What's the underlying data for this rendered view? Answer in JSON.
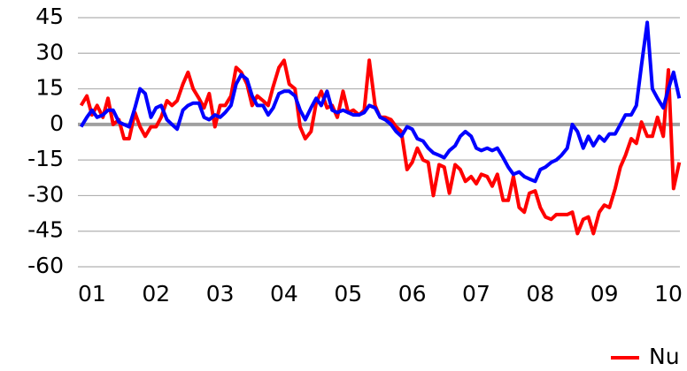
{
  "chart_data": {
    "type": "line",
    "x": [
      0.83,
      0.92,
      1.0,
      1.08,
      1.17,
      1.25,
      1.33,
      1.42,
      1.5,
      1.58,
      1.67,
      1.75,
      1.83,
      1.92,
      2.0,
      2.08,
      2.17,
      2.25,
      2.33,
      2.42,
      2.5,
      2.58,
      2.67,
      2.75,
      2.83,
      2.92,
      3.0,
      3.08,
      3.17,
      3.25,
      3.33,
      3.42,
      3.5,
      3.58,
      3.67,
      3.75,
      3.83,
      3.92,
      4.0,
      4.08,
      4.17,
      4.25,
      4.33,
      4.42,
      4.5,
      4.58,
      4.67,
      4.75,
      4.83,
      4.92,
      5.0,
      5.08,
      5.17,
      5.25,
      5.33,
      5.42,
      5.5,
      5.58,
      5.67,
      5.75,
      5.83,
      5.92,
      6.0,
      6.08,
      6.17,
      6.25,
      6.33,
      6.42,
      6.5,
      6.58,
      6.67,
      6.75,
      6.83,
      6.92,
      7.0,
      7.08,
      7.17,
      7.25,
      7.33,
      7.42,
      7.5,
      7.58,
      7.67,
      7.75,
      7.83,
      7.92,
      8.0,
      8.08,
      8.17,
      8.25,
      8.33,
      8.42,
      8.5,
      8.58,
      8.67,
      8.75,
      8.83,
      8.92,
      9.0,
      9.08,
      9.17,
      9.25,
      9.33,
      9.42,
      9.5,
      9.58,
      9.67,
      9.75,
      9.83,
      9.92,
      10.0,
      10.08,
      10.17
    ],
    "series": [
      {
        "name": "Nu",
        "color": "#ff0000",
        "values": [
          8,
          12,
          4,
          8,
          3,
          11,
          0,
          2,
          -6,
          -6,
          5,
          -1,
          -5,
          -1,
          -1,
          3,
          10,
          8,
          10,
          17,
          22,
          15,
          11,
          7,
          13,
          -1,
          8,
          8,
          12,
          24,
          22,
          17,
          8,
          12,
          10,
          8,
          16,
          24,
          27,
          17,
          15,
          -1,
          -6,
          -3,
          9,
          14,
          7,
          8,
          3,
          14,
          5,
          6,
          4,
          6,
          27,
          8,
          3,
          3,
          2,
          -1,
          -3,
          -19,
          -16,
          -10,
          -15,
          -16,
          -30,
          -17,
          -18,
          -29,
          -17,
          -19,
          -24,
          -22,
          -25,
          -21,
          -22,
          -26,
          -21,
          -32,
          -32,
          -22,
          -35,
          -37,
          -29,
          -28,
          -35,
          -39,
          -40,
          -38,
          -38,
          -38,
          -37,
          -46,
          -40,
          -39,
          -46,
          -37,
          -34,
          -35,
          -27,
          -18,
          -13,
          -6,
          -8,
          1,
          -5,
          -5,
          3,
          -5,
          23,
          -27,
          -16
        ]
      },
      {
        "color": "#0000ff",
        "values": [
          -1,
          3,
          6,
          3,
          4,
          6,
          6,
          1,
          0,
          -1,
          7,
          15,
          13,
          3,
          7,
          8,
          2,
          0,
          -2,
          6,
          8,
          9,
          9,
          3,
          2,
          4,
          3,
          5,
          8,
          17,
          21,
          19,
          12,
          8,
          8,
          4,
          7,
          13,
          14,
          14,
          12,
          6,
          2,
          7,
          11,
          8,
          14,
          6,
          5,
          6,
          5,
          4,
          4,
          5,
          8,
          7,
          3,
          2,
          0,
          -3,
          -5,
          -1,
          -2,
          -6,
          -7,
          -10,
          -12,
          -13,
          -14,
          -11,
          -9,
          -5,
          -3,
          -5,
          -10,
          -11,
          -10,
          -11,
          -10,
          -14,
          -18,
          -21,
          -20,
          -22,
          -23,
          -24,
          -19,
          -18,
          -16,
          -15,
          -13,
          -10,
          0,
          -3,
          -10,
          -5,
          -9,
          -5,
          -7,
          -4,
          -4,
          0,
          4,
          4,
          8,
          25,
          43,
          15,
          11,
          7,
          15,
          22,
          11
        ]
      }
    ],
    "xlim": [
      0.78,
      10.18
    ],
    "xticks": [
      {
        "value": 1,
        "label": "01"
      },
      {
        "value": 2,
        "label": "02"
      },
      {
        "value": 3,
        "label": "03"
      },
      {
        "value": 4,
        "label": "04"
      },
      {
        "value": 5,
        "label": "05"
      },
      {
        "value": 6,
        "label": "06"
      },
      {
        "value": 7,
        "label": "07"
      },
      {
        "value": 8,
        "label": "08"
      },
      {
        "value": 9,
        "label": "09"
      },
      {
        "value": 10,
        "label": "10"
      }
    ],
    "ylim": [
      -60,
      45
    ],
    "yticks": [
      45,
      30,
      15,
      0,
      -15,
      -30,
      -45,
      -60
    ],
    "grid": true,
    "legend": "bottom-right"
  }
}
